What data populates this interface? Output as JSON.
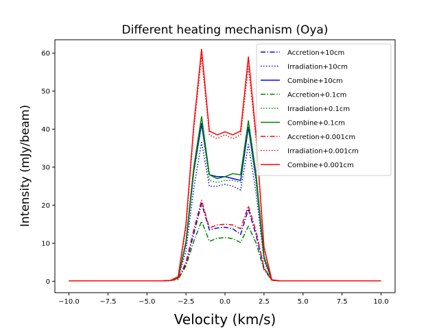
{
  "chart_data": {
    "type": "line",
    "title": "Different heating mechanism (Oya)",
    "xlabel": "Velocity (km/s)",
    "ylabel": "Intensity (mJy/beam)",
    "xlim": [
      -10.9,
      10.9
    ],
    "ylim": [
      -3.0,
      63.5
    ],
    "xticks": [
      -10.0,
      -7.5,
      -5.0,
      -2.5,
      0.0,
      2.5,
      5.0,
      7.5,
      10.0
    ],
    "xtick_labels": [
      "−10.0",
      "−7.5",
      "−5.0",
      "−2.5",
      "0.0",
      "2.5",
      "5.0",
      "7.5",
      "10.0"
    ],
    "yticks": [
      0,
      10,
      20,
      30,
      40,
      50,
      60
    ],
    "ytick_labels": [
      "0",
      "10",
      "20",
      "30",
      "40",
      "50",
      "60"
    ],
    "grid": false,
    "legend_position": "top-right",
    "x": [
      -10.0,
      -9.5,
      -9.0,
      -8.5,
      -8.0,
      -7.5,
      -7.0,
      -6.5,
      -6.0,
      -5.5,
      -5.0,
      -4.5,
      -4.0,
      -3.5,
      -3.0,
      -2.5,
      -2.0,
      -1.5,
      -1.0,
      -0.5,
      0.0,
      0.5,
      1.0,
      1.5,
      2.0,
      2.5,
      3.0,
      3.5,
      4.0,
      4.5,
      5.0,
      5.5,
      6.0,
      6.5,
      7.0,
      7.5,
      8.0,
      8.5,
      9.0,
      9.5,
      10.0
    ],
    "series": [
      {
        "name": "Accretion+10cm",
        "color": "#0000ff",
        "dash": "dashdot",
        "values": [
          0.1,
          0.1,
          0.1,
          0.1,
          0.1,
          0.1,
          0.1,
          0.1,
          0.1,
          0.1,
          0.1,
          0.1,
          0.1,
          0.2,
          0.5,
          4.5,
          12.5,
          20.5,
          13.5,
          14.0,
          14.2,
          13.8,
          12.3,
          19.0,
          12.0,
          3.5,
          0.3,
          0.1,
          0.1,
          0.1,
          0.1,
          0.1,
          0.1,
          0.1,
          0.1,
          0.1,
          0.1,
          0.1,
          0.1,
          0.1,
          0.1
        ]
      },
      {
        "name": "Irradiation+10cm",
        "color": "#0000ff",
        "dash": "dotted",
        "values": [
          0.1,
          0.1,
          0.1,
          0.1,
          0.1,
          0.1,
          0.1,
          0.1,
          0.1,
          0.1,
          0.1,
          0.1,
          0.1,
          0.2,
          0.8,
          8.0,
          24.5,
          36.5,
          25.0,
          25.0,
          25.5,
          25.0,
          24.0,
          36.0,
          23.0,
          5.5,
          0.3,
          0.1,
          0.1,
          0.1,
          0.1,
          0.1,
          0.1,
          0.1,
          0.1,
          0.1,
          0.1,
          0.1,
          0.1,
          0.1,
          0.1
        ]
      },
      {
        "name": "Combine+10cm",
        "color": "#0000ff",
        "dash": "solid",
        "values": [
          0.1,
          0.1,
          0.1,
          0.1,
          0.1,
          0.1,
          0.1,
          0.1,
          0.1,
          0.1,
          0.1,
          0.1,
          0.1,
          0.2,
          0.9,
          10.0,
          29.0,
          41.5,
          28.0,
          27.5,
          27.5,
          27.0,
          26.5,
          40.5,
          27.0,
          6.5,
          0.3,
          0.1,
          0.1,
          0.1,
          0.1,
          0.1,
          0.1,
          0.1,
          0.1,
          0.1,
          0.1,
          0.1,
          0.1,
          0.1,
          0.1
        ]
      },
      {
        "name": "Accretion+0.1cm",
        "color": "#008000",
        "dash": "dashdot",
        "values": [
          0.1,
          0.1,
          0.1,
          0.1,
          0.1,
          0.1,
          0.1,
          0.1,
          0.1,
          0.1,
          0.1,
          0.1,
          0.1,
          0.2,
          0.5,
          4.0,
          10.5,
          15.8,
          10.5,
          11.3,
          11.5,
          11.2,
          10.2,
          14.5,
          10.0,
          3.0,
          0.3,
          0.1,
          0.1,
          0.1,
          0.1,
          0.1,
          0.1,
          0.1,
          0.1,
          0.1,
          0.1,
          0.1,
          0.1,
          0.1,
          0.1
        ]
      },
      {
        "name": "Irradiation+0.1cm",
        "color": "#008000",
        "dash": "dotted",
        "values": [
          0.1,
          0.1,
          0.1,
          0.1,
          0.1,
          0.1,
          0.1,
          0.1,
          0.1,
          0.1,
          0.1,
          0.1,
          0.1,
          0.2,
          0.9,
          10.0,
          28.5,
          41.0,
          26.5,
          26.0,
          26.5,
          26.5,
          26.0,
          40.5,
          25.5,
          6.0,
          0.3,
          0.1,
          0.1,
          0.1,
          0.1,
          0.1,
          0.1,
          0.1,
          0.1,
          0.1,
          0.1,
          0.1,
          0.1,
          0.1,
          0.1
        ]
      },
      {
        "name": "Combine+0.1cm",
        "color": "#008000",
        "dash": "solid",
        "values": [
          0.1,
          0.1,
          0.1,
          0.1,
          0.1,
          0.1,
          0.1,
          0.1,
          0.1,
          0.1,
          0.1,
          0.1,
          0.1,
          0.2,
          0.9,
          10.5,
          30.0,
          43.3,
          28.0,
          27.0,
          27.5,
          28.3,
          28.0,
          42.2,
          28.0,
          6.5,
          0.3,
          0.1,
          0.1,
          0.1,
          0.1,
          0.1,
          0.1,
          0.1,
          0.1,
          0.1,
          0.1,
          0.1,
          0.1,
          0.1,
          0.1
        ]
      },
      {
        "name": "Accretion+0.001cm",
        "color": "#ff0000",
        "dash": "dashdot",
        "values": [
          0.1,
          0.1,
          0.1,
          0.1,
          0.1,
          0.1,
          0.1,
          0.1,
          0.1,
          0.1,
          0.1,
          0.1,
          0.1,
          0.2,
          0.6,
          5.0,
          13.5,
          21.3,
          14.0,
          14.8,
          15.0,
          14.8,
          13.8,
          19.8,
          13.0,
          3.5,
          0.3,
          0.1,
          0.1,
          0.1,
          0.1,
          0.1,
          0.1,
          0.1,
          0.1,
          0.1,
          0.1,
          0.1,
          0.1,
          0.1,
          0.1
        ]
      },
      {
        "name": "Irradiation+0.001cm",
        "color": "#ff0000",
        "dash": "dotted",
        "values": [
          0.1,
          0.1,
          0.1,
          0.1,
          0.1,
          0.1,
          0.1,
          0.1,
          0.1,
          0.1,
          0.1,
          0.1,
          0.1,
          0.2,
          1.2,
          14.0,
          40.0,
          59.0,
          38.5,
          37.5,
          38.5,
          37.5,
          38.5,
          56.5,
          37.0,
          8.5,
          0.3,
          0.1,
          0.1,
          0.1,
          0.1,
          0.1,
          0.1,
          0.1,
          0.1,
          0.1,
          0.1,
          0.1,
          0.1,
          0.1,
          0.1
        ]
      },
      {
        "name": "Combine+0.001cm",
        "color": "#ff0000",
        "dash": "solid",
        "values": [
          0.1,
          0.1,
          0.1,
          0.1,
          0.1,
          0.1,
          0.1,
          0.1,
          0.1,
          0.1,
          0.1,
          0.1,
          0.1,
          0.2,
          1.2,
          15.0,
          41.0,
          61.0,
          39.5,
          38.5,
          39.3,
          38.5,
          39.5,
          59.0,
          38.0,
          9.0,
          0.4,
          0.1,
          0.1,
          0.1,
          0.1,
          0.1,
          0.1,
          0.1,
          0.1,
          0.1,
          0.1,
          0.1,
          0.1,
          0.1,
          0.1
        ]
      }
    ]
  }
}
